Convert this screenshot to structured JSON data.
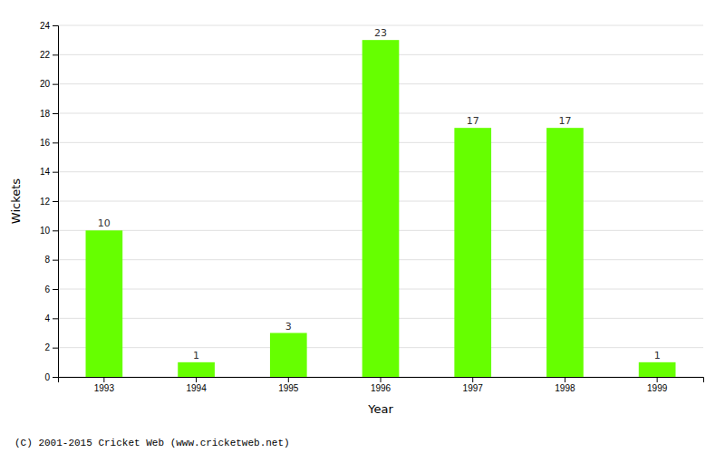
{
  "chart_data": {
    "type": "bar",
    "categories": [
      "1993",
      "1994",
      "1995",
      "1996",
      "1997",
      "1998",
      "1999"
    ],
    "values": [
      10,
      1,
      3,
      23,
      17,
      17,
      1
    ],
    "color": "#66ff00",
    "xlabel": "Year",
    "ylabel": "Wickets",
    "ylim": [
      0,
      24
    ],
    "yticks": [
      0,
      2,
      4,
      6,
      8,
      10,
      12,
      14,
      16,
      18,
      20,
      22,
      24
    ],
    "grid": true,
    "data_labels": true,
    "annotations": [
      "(C) 2001-2015 Cricket Web (www.cricketweb.net)"
    ]
  }
}
